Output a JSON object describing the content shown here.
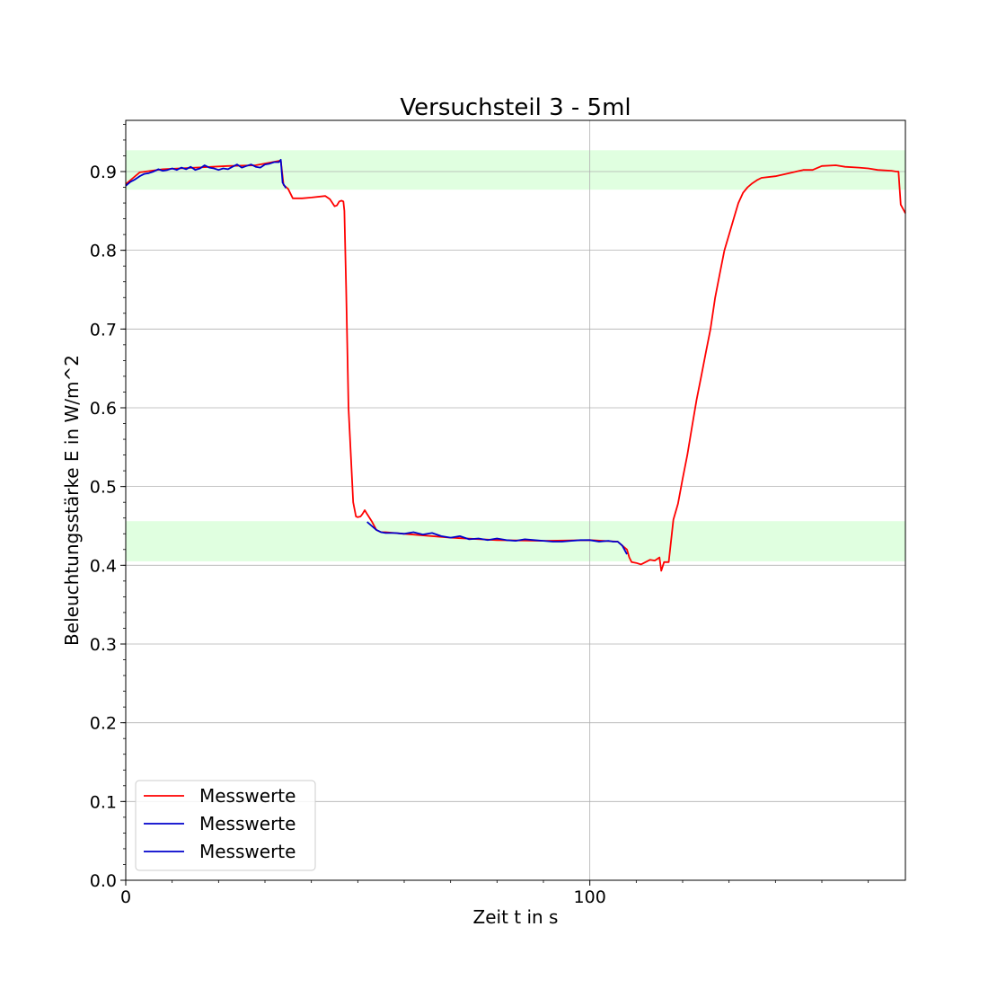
{
  "chart_data": {
    "type": "line",
    "title": "Versuchsteil 3 - 5ml",
    "xlabel": "Zeit t in s",
    "ylabel": "Beleuchtungsstärke E in W/m^2",
    "xlim": [
      0,
      168
    ],
    "ylim": [
      0.0,
      0.965
    ],
    "x_ticks": [
      0,
      100
    ],
    "x_tick_labels": [
      "0",
      "100"
    ],
    "y_ticks": [
      0.0,
      0.1,
      0.2,
      0.3,
      0.4,
      0.5,
      0.6,
      0.7,
      0.8,
      0.9
    ],
    "y_tick_labels": [
      "0.0",
      "0.1",
      "0.2",
      "0.3",
      "0.4",
      "0.5",
      "0.6",
      "0.7",
      "0.8",
      "0.9"
    ],
    "grid": true,
    "legend_position": "lower-left",
    "bands": [
      {
        "y0": 0.877,
        "y1": 0.927,
        "color": "#e0ffe0"
      },
      {
        "y0": 0.405,
        "y1": 0.456,
        "color": "#e0ffe0"
      }
    ],
    "series": [
      {
        "name": "Messwerte",
        "color": "#ff0000",
        "x": [
          0,
          3,
          8,
          15,
          22,
          28,
          33.4,
          34,
          35,
          36,
          38,
          40,
          43,
          44,
          45,
          45.5,
          46,
          46.5,
          46.9,
          47.1,
          47.5,
          48,
          49,
          49.6,
          50,
          50.6,
          51,
          51.5,
          52,
          53,
          54,
          55,
          56,
          60,
          70,
          80,
          90,
          100,
          106,
          108,
          108.5,
          109,
          110,
          111,
          112,
          113,
          114,
          115,
          115.4,
          116,
          117,
          118,
          119,
          120,
          121,
          122,
          123,
          124,
          125,
          126,
          127,
          128,
          129,
          130,
          131,
          132,
          133,
          134,
          135,
          136,
          137,
          140,
          143,
          146,
          148,
          150,
          153,
          155,
          158,
          160,
          162,
          165,
          166,
          166.5,
          167,
          168
        ],
        "values": [
          0.884,
          0.899,
          0.903,
          0.905,
          0.907,
          0.908,
          0.914,
          0.883,
          0.878,
          0.866,
          0.866,
          0.867,
          0.869,
          0.865,
          0.856,
          0.857,
          0.862,
          0.863,
          0.862,
          0.85,
          0.75,
          0.6,
          0.48,
          0.462,
          0.461,
          0.462,
          0.465,
          0.47,
          0.465,
          0.456,
          0.445,
          0.442,
          0.442,
          0.44,
          0.435,
          0.432,
          0.431,
          0.432,
          0.43,
          0.42,
          0.41,
          0.404,
          0.403,
          0.401,
          0.404,
          0.407,
          0.406,
          0.41,
          0.393,
          0.404,
          0.404,
          0.458,
          0.478,
          0.51,
          0.54,
          0.575,
          0.61,
          0.64,
          0.67,
          0.7,
          0.74,
          0.77,
          0.8,
          0.82,
          0.84,
          0.86,
          0.873,
          0.88,
          0.885,
          0.889,
          0.892,
          0.894,
          0.898,
          0.902,
          0.902,
          0.907,
          0.908,
          0.906,
          0.905,
          0.904,
          0.902,
          0.901,
          0.9,
          0.9,
          0.858,
          0.847
        ]
      },
      {
        "name": "Messwerte",
        "color": "#0000cc",
        "x": [
          0,
          1,
          2,
          3,
          4,
          5,
          6,
          7,
          8,
          9,
          10,
          11,
          12,
          13,
          14,
          15,
          16,
          17,
          18,
          19,
          20,
          21,
          22,
          23,
          24,
          25,
          26,
          27,
          28,
          29,
          30,
          31,
          32,
          33,
          33.4,
          33.8,
          34.5
        ],
        "values": [
          0.882,
          0.887,
          0.89,
          0.894,
          0.897,
          0.898,
          0.9,
          0.903,
          0.901,
          0.902,
          0.904,
          0.902,
          0.905,
          0.903,
          0.906,
          0.902,
          0.904,
          0.908,
          0.905,
          0.904,
          0.902,
          0.904,
          0.903,
          0.906,
          0.909,
          0.905,
          0.907,
          0.909,
          0.906,
          0.905,
          0.909,
          0.91,
          0.912,
          0.912,
          0.915,
          0.886,
          0.879
        ]
      },
      {
        "name": "Messwerte",
        "color": "#0000cc",
        "x": [
          52,
          53,
          54,
          55,
          56,
          58,
          60,
          62,
          64,
          66,
          68,
          70,
          72,
          74,
          76,
          78,
          80,
          82,
          84,
          86,
          88,
          90,
          92,
          94,
          96,
          98,
          100,
          102,
          104,
          105,
          106,
          107,
          108
        ],
        "values": [
          0.455,
          0.45,
          0.445,
          0.442,
          0.441,
          0.441,
          0.44,
          0.442,
          0.439,
          0.441,
          0.437,
          0.435,
          0.437,
          0.433,
          0.434,
          0.432,
          0.434,
          0.432,
          0.431,
          0.433,
          0.432,
          0.431,
          0.43,
          0.43,
          0.431,
          0.432,
          0.432,
          0.43,
          0.431,
          0.43,
          0.43,
          0.425,
          0.414
        ]
      }
    ]
  }
}
